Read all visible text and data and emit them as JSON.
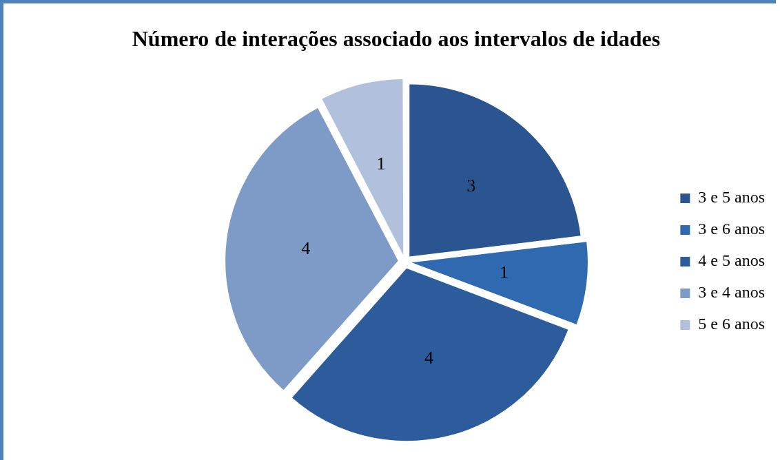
{
  "chart_data": {
    "type": "pie",
    "title": "Número de interações associado aos intervalos de idades",
    "categories": [
      "3 e 5 anos",
      "3 e 6 anos",
      "4 e 5 anos",
      "3 e 4 anos",
      "5 e 6 anos"
    ],
    "values": [
      3,
      1,
      4,
      4,
      1
    ],
    "colors": [
      "#2a5590",
      "#2f69b0",
      "#2c5c9c",
      "#7e9bc8",
      "#b1c0dc"
    ],
    "data_labels": true,
    "legend": "right"
  }
}
